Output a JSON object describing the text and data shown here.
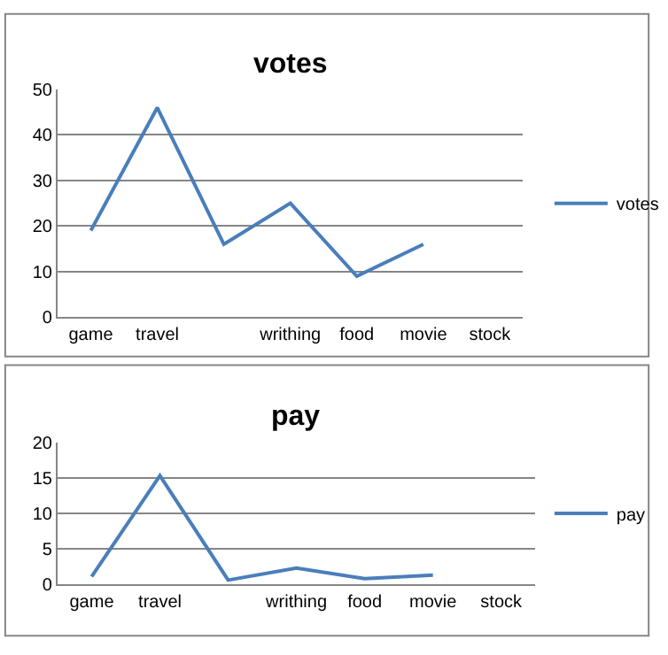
{
  "chart_data": [
    {
      "type": "line",
      "title": "votes",
      "categories": [
        "game",
        "travel",
        null,
        "writhing",
        "food",
        "movie",
        "stock"
      ],
      "series": [
        {
          "name": "votes",
          "color": "#4a7ebb",
          "values": [
            19,
            46,
            16,
            25,
            9,
            16,
            null
          ]
        }
      ],
      "ylim": [
        0,
        50
      ],
      "yticks": [
        0,
        10,
        20,
        30,
        40,
        50
      ],
      "grid": "y",
      "legend": "right"
    },
    {
      "type": "line",
      "title": "pay",
      "categories": [
        "game",
        "travel",
        null,
        "writhing",
        "food",
        "movie",
        "stock"
      ],
      "series": [
        {
          "name": "pay",
          "color": "#4a7ebb",
          "values": [
            1.1,
            15.3,
            0.6,
            2.3,
            0.8,
            1.3,
            null
          ]
        }
      ],
      "ylim": [
        0,
        20
      ],
      "yticks": [
        0,
        5,
        10,
        15,
        20
      ],
      "grid": "y",
      "legend": "right"
    }
  ]
}
